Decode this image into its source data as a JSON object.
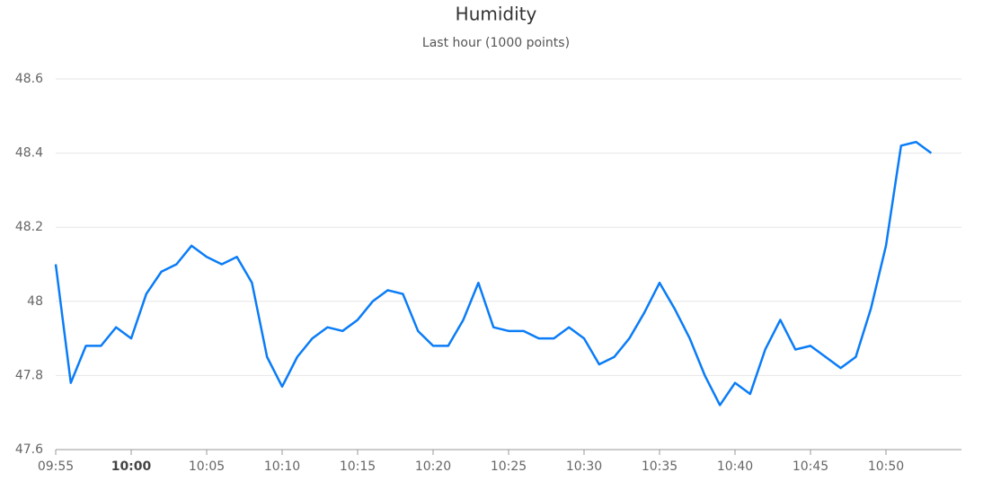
{
  "chart_data": {
    "type": "line",
    "title": "Humidity",
    "subtitle": "Last hour (1000 points)",
    "x": [
      "09:55",
      "09:56",
      "09:57",
      "09:58",
      "09:59",
      "10:00",
      "10:01",
      "10:02",
      "10:03",
      "10:04",
      "10:05",
      "10:06",
      "10:07",
      "10:08",
      "10:09",
      "10:10",
      "10:11",
      "10:12",
      "10:13",
      "10:14",
      "10:15",
      "10:16",
      "10:17",
      "10:18",
      "10:19",
      "10:20",
      "10:21",
      "10:22",
      "10:23",
      "10:24",
      "10:25",
      "10:26",
      "10:27",
      "10:28",
      "10:29",
      "10:30",
      "10:31",
      "10:32",
      "10:33",
      "10:34",
      "10:35",
      "10:36",
      "10:37",
      "10:38",
      "10:39",
      "10:40",
      "10:41",
      "10:42",
      "10:43",
      "10:44",
      "10:45",
      "10:46",
      "10:47",
      "10:48",
      "10:49",
      "10:50",
      "10:51",
      "10:52",
      "10:53"
    ],
    "series": [
      {
        "name": "Humidity",
        "color": "#0a7cf7",
        "values": [
          48.1,
          47.78,
          47.88,
          47.88,
          47.93,
          47.9,
          48.02,
          48.08,
          48.1,
          48.15,
          48.12,
          48.1,
          48.12,
          48.05,
          47.85,
          47.77,
          47.85,
          47.9,
          47.93,
          47.92,
          47.95,
          48.0,
          48.03,
          48.02,
          47.92,
          47.88,
          47.88,
          47.95,
          48.05,
          47.93,
          47.92,
          47.92,
          47.9,
          47.9,
          47.93,
          47.9,
          47.83,
          47.85,
          47.9,
          47.97,
          48.05,
          47.98,
          47.9,
          47.8,
          47.72,
          47.78,
          47.75,
          47.87,
          47.95,
          47.87,
          47.88,
          47.85,
          47.82,
          47.85,
          47.98,
          48.15,
          48.42,
          48.43,
          48.4
        ]
      }
    ],
    "xlim": [
      "09:55",
      "10:55"
    ],
    "xticks": [
      "09:55",
      "10:00",
      "10:05",
      "10:10",
      "10:15",
      "10:20",
      "10:25",
      "10:30",
      "10:35",
      "10:40",
      "10:45",
      "10:50"
    ],
    "ylim": [
      47.6,
      48.6
    ],
    "yticks": [
      47.6,
      47.8,
      48,
      48.2,
      48.4,
      48.6
    ],
    "grid": true
  }
}
